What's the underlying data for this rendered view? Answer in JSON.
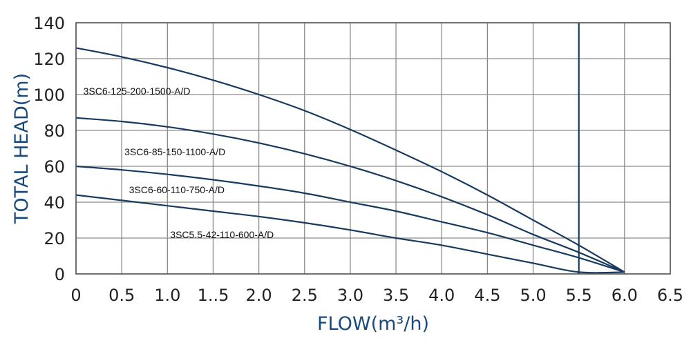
{
  "chart_data": {
    "type": "line",
    "xlabel": "FLOW(m³/h)",
    "ylabel": "TOTAL HEAD(m)",
    "xlim": [
      0,
      6.5
    ],
    "ylim": [
      0,
      140
    ],
    "grid": true,
    "x_ticks": [
      0,
      0.5,
      1.0,
      1.5,
      2.0,
      2.5,
      3.0,
      3.5,
      4.0,
      4.5,
      5.0,
      5.5,
      6.0,
      6.5
    ],
    "x_tick_labels": [
      "0",
      "0.5",
      "1.0",
      "1..5",
      "2.0",
      "2.5",
      "3.0",
      "3.5",
      "4.0",
      "4.5",
      "5.0",
      "5.5",
      "6.0",
      "6.5"
    ],
    "y_ticks": [
      0,
      20,
      40,
      60,
      80,
      100,
      120,
      140
    ],
    "y_tick_labels": [
      "0",
      "20",
      "40",
      "60",
      "80",
      "100",
      "120",
      "140"
    ],
    "reference_line_x": 5.5,
    "line_color": "#173a5e",
    "series": [
      {
        "name": "3SC6-125-200-1500-A/D",
        "label_at": [
          0.05,
          102
        ],
        "x": [
          0,
          0.5,
          1.0,
          1.5,
          2.0,
          2.5,
          3.0,
          3.5,
          4.0,
          4.5,
          5.0,
          5.5,
          6.0
        ],
        "y": [
          126,
          121,
          115,
          108,
          100,
          91,
          80.5,
          69,
          57,
          44,
          30,
          16,
          1
        ]
      },
      {
        "name": "3SC6-85-150-1100-A/D",
        "label_at": [
          0.5,
          68
        ],
        "x": [
          0,
          0.5,
          1.0,
          1.5,
          2.0,
          2.5,
          3.0,
          3.5,
          4.0,
          4.5,
          5.0,
          5.5,
          6.0
        ],
        "y": [
          87,
          85,
          82,
          78,
          73,
          67,
          60,
          52,
          43,
          33,
          22,
          12,
          1
        ]
      },
      {
        "name": "3SC6-60-110-750-A/D",
        "label_at": [
          0.55,
          47
        ],
        "x": [
          0,
          0.5,
          1.0,
          1.5,
          2.0,
          2.5,
          3.0,
          3.5,
          4.0,
          4.5,
          5.0,
          5.5,
          6.0
        ],
        "y": [
          60,
          58,
          55.5,
          52.5,
          49,
          45,
          40,
          35,
          29,
          23,
          16,
          9,
          1
        ]
      },
      {
        "name": "3SC5.5-42-110-600-A/D",
        "label_at": [
          1.0,
          22
        ],
        "x": [
          0,
          0.5,
          1.0,
          1.5,
          2.0,
          2.5,
          3.0,
          3.5,
          4.0,
          4.5,
          5.0,
          5.5,
          6.0
        ],
        "y": [
          44,
          41,
          38,
          35,
          32,
          28.5,
          24.5,
          20,
          16,
          11,
          6,
          1,
          1
        ]
      }
    ]
  }
}
